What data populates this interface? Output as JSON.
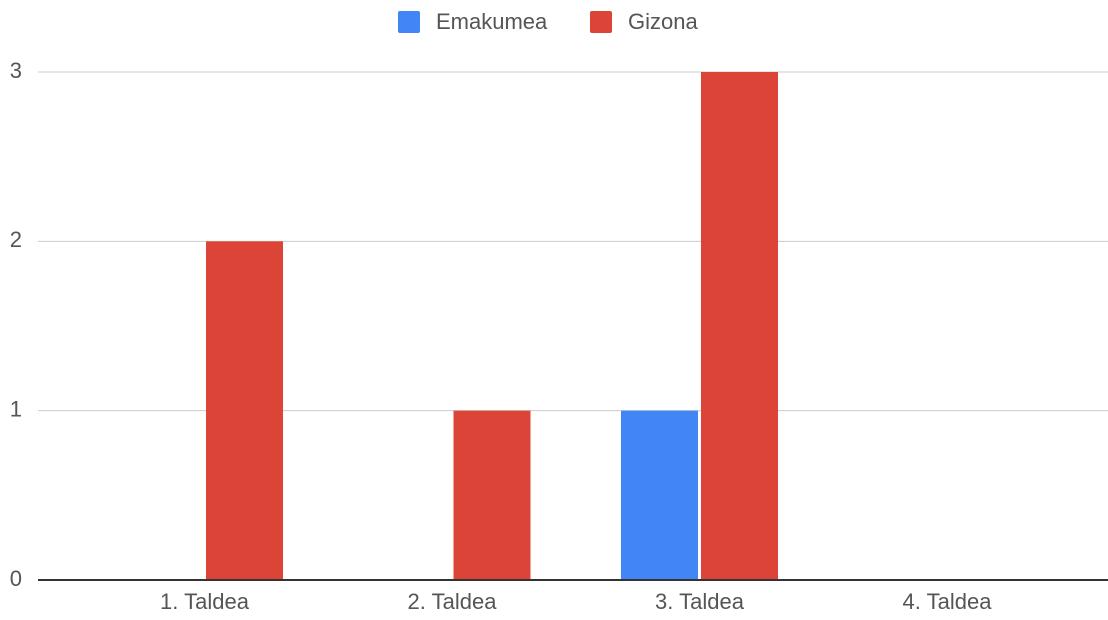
{
  "chart_data": {
    "type": "bar",
    "categories": [
      "1. Taldea",
      "2. Taldea",
      "3. Taldea",
      "4. Taldea"
    ],
    "series": [
      {
        "name": "Emakumea",
        "color": "#4285f4",
        "values": [
          0,
          0,
          1,
          0
        ]
      },
      {
        "name": "Gizona",
        "color": "#db4437",
        "values": [
          2,
          1,
          3,
          0
        ]
      }
    ],
    "ylim": [
      0,
      3
    ],
    "yticks": [
      0,
      1,
      2,
      3
    ],
    "grid": true,
    "legend": "top"
  }
}
